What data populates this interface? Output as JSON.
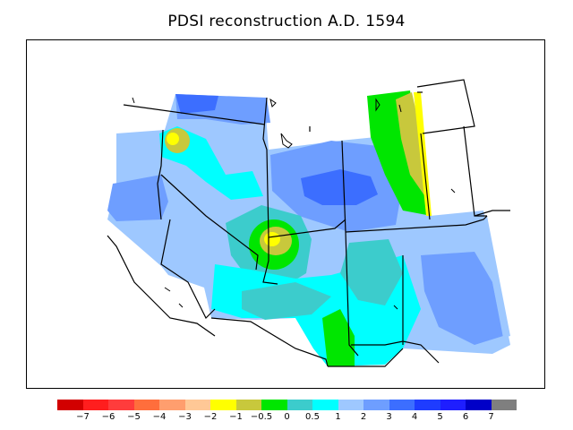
{
  "title": "PDSI reconstruction A.D. 1594",
  "legend": {
    "colors": [
      "#d20000",
      "#ff1e1e",
      "#ff3c3c",
      "#ff6e3c",
      "#ff9e6e",
      "#ffc896",
      "#ffff00",
      "#c8c83c",
      "#00e600",
      "#3ccccc",
      "#00ffff",
      "#9ec8ff",
      "#6e9eff",
      "#3c6eff",
      "#1e3cff",
      "#1e1eff",
      "#0000c8",
      "#7f7f7f"
    ],
    "ticks": [
      "−7",
      "−6",
      "−5",
      "−4",
      "−3",
      "−2",
      "−1",
      "−0.5",
      "0",
      "0.5",
      "1",
      "2",
      "3",
      "4",
      "5",
      "6",
      "7"
    ]
  }
}
